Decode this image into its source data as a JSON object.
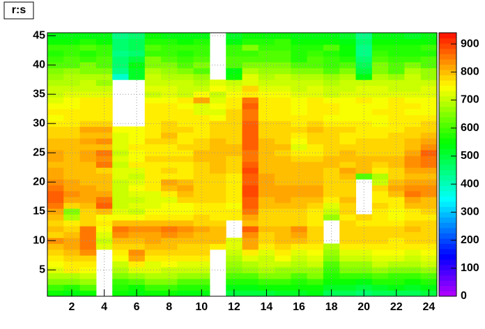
{
  "chart_data": {
    "type": "heatmap",
    "title": "r:s",
    "x": [
      1,
      2,
      3,
      4,
      5,
      6,
      7,
      8,
      9,
      10,
      11,
      12,
      13,
      14,
      15,
      16,
      17,
      18,
      19,
      20,
      21,
      22,
      23,
      24
    ],
    "y": [
      1,
      2,
      3,
      4,
      5,
      6,
      7,
      8,
      9,
      10,
      11,
      12,
      13,
      14,
      15,
      16,
      17,
      18,
      19,
      20,
      21,
      22,
      23,
      24,
      25,
      26,
      27,
      28,
      29,
      30,
      31,
      32,
      33,
      34,
      35,
      36,
      37,
      38,
      39,
      40,
      41,
      42,
      43,
      44,
      45
    ],
    "xlim": [
      0.5,
      24.5
    ],
    "ylim": [
      0.5,
      45.5
    ],
    "zlim": [
      0,
      940
    ],
    "xticks": [
      2,
      4,
      6,
      8,
      10,
      12,
      14,
      16,
      18,
      20,
      22,
      24
    ],
    "yticks": [
      5,
      10,
      15,
      20,
      25,
      30,
      35,
      40,
      45
    ],
    "zticks": [
      0,
      100,
      200,
      300,
      400,
      500,
      600,
      700,
      800,
      900
    ],
    "grid": true,
    "z": [
      [
        560,
        540,
        560,
        null,
        560,
        540,
        560,
        560,
        540,
        540,
        null,
        500,
        500,
        500,
        520,
        520,
        540,
        480,
        480,
        460,
        480,
        480,
        480,
        500
      ],
      [
        600,
        580,
        620,
        null,
        580,
        560,
        600,
        600,
        580,
        580,
        null,
        540,
        540,
        560,
        560,
        560,
        560,
        520,
        520,
        500,
        520,
        540,
        520,
        540
      ],
      [
        640,
        640,
        660,
        null,
        600,
        620,
        640,
        640,
        620,
        620,
        null,
        580,
        580,
        600,
        600,
        580,
        600,
        560,
        560,
        540,
        580,
        580,
        560,
        580
      ],
      [
        680,
        680,
        700,
        null,
        640,
        660,
        680,
        680,
        660,
        660,
        null,
        620,
        620,
        640,
        640,
        620,
        640,
        580,
        600,
        600,
        620,
        600,
        600,
        620
      ],
      [
        720,
        760,
        740,
        null,
        680,
        720,
        720,
        700,
        700,
        700,
        null,
        640,
        660,
        680,
        660,
        660,
        660,
        600,
        640,
        640,
        660,
        640,
        640,
        660
      ],
      [
        740,
        760,
        760,
        null,
        700,
        760,
        720,
        740,
        720,
        720,
        null,
        660,
        680,
        700,
        700,
        680,
        700,
        620,
        660,
        660,
        700,
        680,
        680,
        700
      ],
      [
        760,
        780,
        780,
        null,
        740,
        820,
        760,
        760,
        760,
        760,
        null,
        680,
        720,
        700,
        740,
        700,
        720,
        640,
        700,
        700,
        720,
        720,
        700,
        720
      ],
      [
        780,
        800,
        840,
        null,
        760,
        840,
        780,
        780,
        780,
        780,
        null,
        700,
        760,
        720,
        760,
        720,
        740,
        660,
        720,
        720,
        740,
        740,
        720,
        740
      ],
      [
        800,
        820,
        860,
        720,
        780,
        780,
        800,
        800,
        780,
        780,
        760,
        720,
        820,
        760,
        780,
        760,
        760,
        680,
        760,
        760,
        760,
        760,
        760,
        760
      ],
      [
        840,
        820,
        860,
        700,
        800,
        800,
        820,
        800,
        800,
        800,
        800,
        720,
        820,
        780,
        800,
        800,
        780,
        null,
        780,
        780,
        780,
        760,
        780,
        780
      ],
      [
        780,
        800,
        860,
        720,
        840,
        820,
        820,
        840,
        820,
        800,
        800,
        null,
        840,
        780,
        800,
        820,
        780,
        null,
        780,
        780,
        780,
        780,
        780,
        780
      ],
      [
        800,
        780,
        860,
        740,
        860,
        840,
        840,
        860,
        840,
        820,
        800,
        null,
        880,
        800,
        800,
        840,
        780,
        null,
        780,
        780,
        780,
        780,
        800,
        780
      ],
      [
        780,
        760,
        780,
        760,
        800,
        800,
        800,
        800,
        800,
        780,
        780,
        null,
        800,
        780,
        780,
        780,
        760,
        null,
        780,
        760,
        760,
        760,
        780,
        780
      ],
      [
        800,
        680,
        780,
        740,
        740,
        740,
        760,
        760,
        760,
        780,
        760,
        760,
        820,
        780,
        780,
        780,
        760,
        660,
        760,
        780,
        760,
        740,
        760,
        760
      ],
      [
        820,
        640,
        780,
        800,
        720,
        700,
        740,
        740,
        740,
        760,
        760,
        760,
        860,
        780,
        780,
        780,
        760,
        700,
        780,
        null,
        760,
        740,
        760,
        780
      ],
      [
        860,
        780,
        800,
        880,
        700,
        720,
        720,
        740,
        740,
        760,
        760,
        740,
        880,
        800,
        800,
        800,
        780,
        720,
        780,
        null,
        780,
        760,
        800,
        800
      ],
      [
        880,
        820,
        820,
        860,
        700,
        700,
        720,
        720,
        780,
        780,
        780,
        760,
        880,
        800,
        820,
        800,
        800,
        760,
        800,
        null,
        760,
        760,
        820,
        800
      ],
      [
        880,
        840,
        820,
        820,
        700,
        720,
        720,
        760,
        800,
        780,
        780,
        760,
        900,
        820,
        820,
        820,
        820,
        780,
        780,
        null,
        760,
        800,
        860,
        840
      ],
      [
        860,
        820,
        820,
        800,
        700,
        740,
        760,
        800,
        820,
        780,
        780,
        760,
        900,
        820,
        820,
        820,
        820,
        780,
        780,
        null,
        780,
        820,
        840,
        840
      ],
      [
        840,
        820,
        800,
        800,
        700,
        720,
        760,
        820,
        800,
        780,
        780,
        760,
        880,
        820,
        800,
        800,
        800,
        780,
        780,
        null,
        700,
        800,
        820,
        820
      ],
      [
        820,
        800,
        800,
        800,
        720,
        700,
        760,
        760,
        760,
        780,
        780,
        760,
        880,
        820,
        800,
        800,
        800,
        780,
        800,
        620,
        680,
        780,
        800,
        800
      ],
      [
        820,
        800,
        800,
        780,
        720,
        720,
        760,
        780,
        760,
        780,
        800,
        780,
        900,
        800,
        800,
        800,
        800,
        780,
        820,
        800,
        760,
        780,
        820,
        820
      ],
      [
        800,
        800,
        800,
        860,
        700,
        760,
        760,
        760,
        760,
        780,
        800,
        780,
        880,
        800,
        800,
        800,
        800,
        800,
        780,
        800,
        780,
        800,
        840,
        860
      ],
      [
        820,
        800,
        820,
        840,
        720,
        740,
        780,
        780,
        780,
        800,
        800,
        780,
        860,
        800,
        800,
        780,
        780,
        800,
        800,
        800,
        800,
        800,
        840,
        860
      ],
      [
        820,
        800,
        820,
        860,
        700,
        740,
        760,
        760,
        760,
        800,
        800,
        800,
        860,
        800,
        780,
        760,
        760,
        780,
        800,
        780,
        780,
        780,
        820,
        880
      ],
      [
        800,
        800,
        800,
        800,
        720,
        760,
        760,
        760,
        780,
        780,
        800,
        800,
        880,
        800,
        800,
        720,
        760,
        780,
        780,
        780,
        780,
        780,
        800,
        840
      ],
      [
        800,
        800,
        820,
        840,
        720,
        740,
        780,
        780,
        760,
        780,
        800,
        780,
        880,
        800,
        780,
        740,
        780,
        780,
        760,
        780,
        780,
        780,
        800,
        820
      ],
      [
        780,
        780,
        800,
        800,
        720,
        740,
        760,
        800,
        760,
        760,
        780,
        780,
        880,
        780,
        780,
        760,
        780,
        780,
        760,
        760,
        760,
        780,
        780,
        800
      ],
      [
        780,
        780,
        820,
        820,
        740,
        740,
        760,
        780,
        780,
        760,
        780,
        780,
        880,
        780,
        780,
        780,
        800,
        780,
        780,
        760,
        760,
        760,
        780,
        780
      ],
      [
        760,
        760,
        780,
        780,
        null,
        null,
        760,
        780,
        760,
        760,
        780,
        780,
        880,
        780,
        780,
        760,
        780,
        760,
        760,
        760,
        740,
        760,
        760,
        780
      ],
      [
        740,
        760,
        760,
        760,
        null,
        null,
        760,
        760,
        760,
        760,
        740,
        780,
        860,
        760,
        760,
        760,
        760,
        740,
        740,
        740,
        740,
        760,
        760,
        760
      ],
      [
        760,
        760,
        760,
        760,
        null,
        null,
        760,
        760,
        760,
        720,
        720,
        780,
        860,
        760,
        760,
        740,
        760,
        760,
        740,
        740,
        760,
        760,
        740,
        740
      ],
      [
        740,
        740,
        760,
        760,
        null,
        null,
        760,
        760,
        740,
        720,
        740,
        760,
        880,
        760,
        760,
        740,
        760,
        760,
        740,
        740,
        740,
        760,
        760,
        740
      ],
      [
        720,
        740,
        760,
        760,
        null,
        null,
        740,
        740,
        760,
        820,
        720,
        760,
        860,
        760,
        760,
        740,
        760,
        740,
        740,
        760,
        740,
        760,
        740,
        740
      ],
      [
        700,
        720,
        720,
        720,
        null,
        null,
        700,
        720,
        700,
        740,
        700,
        740,
        760,
        740,
        740,
        720,
        720,
        700,
        720,
        720,
        720,
        720,
        720,
        720
      ],
      [
        700,
        700,
        700,
        700,
        null,
        null,
        720,
        720,
        700,
        700,
        740,
        720,
        780,
        720,
        720,
        700,
        720,
        700,
        700,
        720,
        720,
        700,
        700,
        720
      ],
      [
        680,
        680,
        700,
        660,
        null,
        null,
        700,
        700,
        700,
        680,
        720,
        700,
        720,
        700,
        700,
        700,
        700,
        680,
        700,
        700,
        700,
        700,
        700,
        700
      ],
      [
        660,
        680,
        680,
        680,
        380,
        520,
        700,
        680,
        680,
        660,
        null,
        560,
        720,
        680,
        700,
        680,
        680,
        660,
        680,
        540,
        680,
        660,
        700,
        660
      ],
      [
        640,
        660,
        640,
        640,
        440,
        520,
        680,
        660,
        640,
        620,
        null,
        540,
        680,
        660,
        660,
        640,
        640,
        620,
        640,
        500,
        640,
        620,
        680,
        660
      ],
      [
        620,
        620,
        640,
        620,
        460,
        540,
        640,
        640,
        620,
        640,
        null,
        620,
        640,
        640,
        640,
        620,
        620,
        600,
        620,
        480,
        640,
        620,
        640,
        620
      ],
      [
        600,
        620,
        600,
        620,
        460,
        500,
        640,
        620,
        600,
        620,
        null,
        620,
        620,
        620,
        620,
        580,
        620,
        600,
        580,
        460,
        620,
        600,
        600,
        620
      ],
      [
        580,
        600,
        580,
        600,
        440,
        460,
        600,
        600,
        580,
        600,
        null,
        600,
        600,
        620,
        620,
        580,
        600,
        580,
        560,
        440,
        600,
        580,
        580,
        580
      ],
      [
        600,
        600,
        620,
        600,
        460,
        480,
        620,
        600,
        600,
        600,
        null,
        600,
        640,
        600,
        600,
        580,
        580,
        620,
        560,
        440,
        580,
        580,
        580,
        600
      ],
      [
        560,
        560,
        580,
        560,
        460,
        480,
        580,
        580,
        560,
        580,
        null,
        540,
        580,
        580,
        600,
        560,
        560,
        560,
        540,
        460,
        560,
        560,
        560,
        560
      ],
      [
        540,
        540,
        540,
        540,
        440,
        460,
        560,
        540,
        540,
        540,
        null,
        520,
        560,
        560,
        560,
        540,
        540,
        540,
        520,
        440,
        540,
        540,
        520,
        540
      ]
    ]
  }
}
